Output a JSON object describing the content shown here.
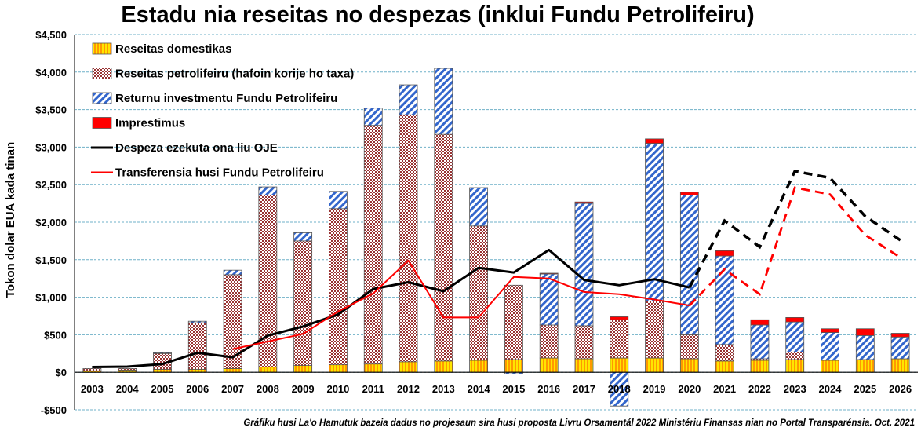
{
  "chart_data": {
    "type": "bar",
    "title": "Estadu nia reseitas no despezas (inklui Fundu Petrolifeiru)",
    "ylabel": "Tokon dolar EUA kada tinan",
    "ylim": [
      -500,
      4500
    ],
    "yticks": [
      -500,
      0,
      500,
      1000,
      1500,
      2000,
      2500,
      3000,
      3500,
      4000,
      4500
    ],
    "ytick_labels": [
      "-$500",
      "$0",
      "$500",
      "$1,000",
      "$1,500",
      "$2,000",
      "$2,500",
      "$3,000",
      "$3,500",
      "$4,000",
      "$4,500"
    ],
    "categories": [
      "2003",
      "2004",
      "2005",
      "2006",
      "2007",
      "2008",
      "2009",
      "2010",
      "2011",
      "2012",
      "2013",
      "2014",
      "2015",
      "2016",
      "2017",
      "2018",
      "2019",
      "2020",
      "2021",
      "2022",
      "2023",
      "2024",
      "2025",
      "2026"
    ],
    "grid": true,
    "legend_position": "top-left",
    "bar_series": [
      {
        "name": "Reseitas domestikas",
        "pattern": "vstripe",
        "color": "#ff9900",
        "values": [
          20,
          30,
          40,
          40,
          50,
          70,
          90,
          100,
          110,
          140,
          150,
          160,
          170,
          190,
          180,
          190,
          190,
          180,
          150,
          160,
          170,
          160,
          170,
          180
        ]
      },
      {
        "name": "Reseitas petrolifeiru (hafoin korije ho taxa)",
        "pattern": "checker",
        "color": "#993333",
        "values": [
          30,
          20,
          210,
          620,
          1250,
          2290,
          1660,
          2080,
          3180,
          3290,
          3020,
          1790,
          990,
          440,
          440,
          510,
          760,
          320,
          220,
          20,
          100,
          0,
          0,
          0
        ]
      },
      {
        "name": "Returnu investmentu Fundu Petrolifeiru",
        "pattern": "diag",
        "color": "#3366cc",
        "values": [
          0,
          0,
          10,
          20,
          60,
          110,
          110,
          230,
          230,
          400,
          880,
          510,
          -20,
          680,
          1630,
          -450,
          2100,
          1860,
          1180,
          450,
          400,
          370,
          320,
          290
        ]
      },
      {
        "name": "Imprestimus",
        "pattern": "solid",
        "color": "#ff0000",
        "values": [
          0,
          0,
          0,
          0,
          0,
          0,
          0,
          0,
          0,
          0,
          0,
          0,
          0,
          10,
          20,
          40,
          60,
          40,
          70,
          70,
          60,
          50,
          90,
          50
        ]
      }
    ],
    "line_series": [
      {
        "name": "Despeza ezekuta ona liu OJE",
        "color": "#000000",
        "values": [
          70,
          75,
          110,
          260,
          200,
          490,
          610,
          770,
          1110,
          1200,
          1080,
          1390,
          1330,
          1630,
          1230,
          1160,
          1240,
          1130,
          2020,
          1670,
          2680,
          2590,
          2080,
          1760
        ],
        "dashed_from": "2020"
      },
      {
        "name": "Transferensia husi Fundu Petrolifeiru",
        "color": "#ff0000",
        "values": [
          null,
          null,
          null,
          null,
          310,
          410,
          510,
          810,
          1050,
          1490,
          730,
          730,
          1270,
          1250,
          1070,
          1040,
          970,
          890,
          1370,
          1040,
          2460,
          2370,
          1830,
          1530
        ],
        "dashed_from": "2020"
      }
    ],
    "source_note": "Gráfiku husi La'o Hamutuk bazeia dadus no projesaun sira husi proposta Livru Orsamentál 2022 Ministériu Finansas nian no Portal Transparénsia.  Oct. 2021"
  }
}
